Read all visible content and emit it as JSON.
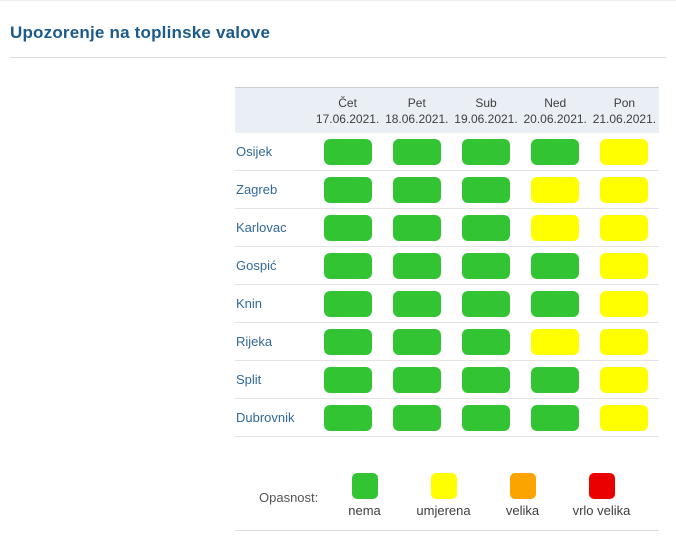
{
  "title": "Upozorenje na toplinske valove",
  "table": {
    "columns": [
      {
        "day": "Čet",
        "date": "17.06.2021."
      },
      {
        "day": "Pet",
        "date": "18.06.2021."
      },
      {
        "day": "Sub",
        "date": "19.06.2021."
      },
      {
        "day": "Ned",
        "date": "20.06.2021."
      },
      {
        "day": "Pon",
        "date": "21.06.2021."
      }
    ],
    "rows": [
      {
        "city": "Osijek",
        "levels": [
          "nema",
          "nema",
          "nema",
          "nema",
          "umjerena"
        ]
      },
      {
        "city": "Zagreb",
        "levels": [
          "nema",
          "nema",
          "nema",
          "umjerena",
          "umjerena"
        ]
      },
      {
        "city": "Karlovac",
        "levels": [
          "nema",
          "nema",
          "nema",
          "umjerena",
          "umjerena"
        ]
      },
      {
        "city": "Gospić",
        "levels": [
          "nema",
          "nema",
          "nema",
          "nema",
          "umjerena"
        ]
      },
      {
        "city": "Knin",
        "levels": [
          "nema",
          "nema",
          "nema",
          "nema",
          "umjerena"
        ]
      },
      {
        "city": "Rijeka",
        "levels": [
          "nema",
          "nema",
          "nema",
          "umjerena",
          "umjerena"
        ]
      },
      {
        "city": "Split",
        "levels": [
          "nema",
          "nema",
          "nema",
          "nema",
          "umjerena"
        ]
      },
      {
        "city": "Dubrovnik",
        "levels": [
          "nema",
          "nema",
          "nema",
          "nema",
          "umjerena"
        ]
      }
    ]
  },
  "legend": {
    "label": "Opasnost:",
    "items": [
      {
        "level": "nema",
        "label": "nema",
        "color": "#33c433"
      },
      {
        "level": "umjerena",
        "label": "umjerena",
        "color": "#ffff00"
      },
      {
        "level": "velika",
        "label": "velika",
        "color": "#fba400"
      },
      {
        "level": "vrlo velika",
        "label": "vrlo velika",
        "color": "#eb0000"
      }
    ]
  }
}
